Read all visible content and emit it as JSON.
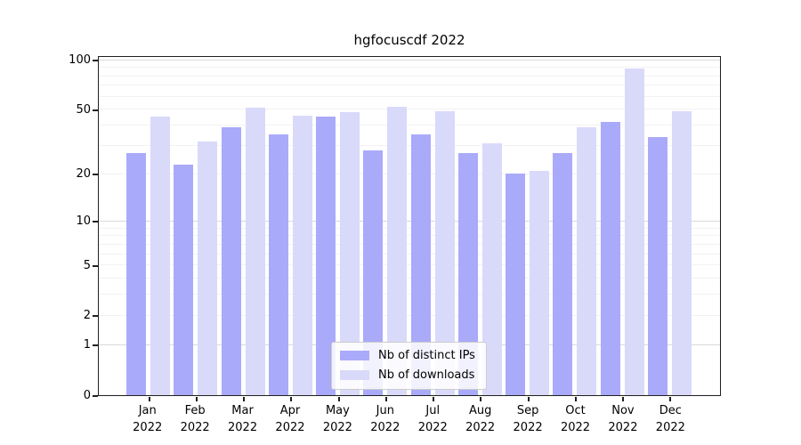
{
  "chart_data": {
    "type": "bar",
    "title": "hgfocuscdf 2022",
    "categories": [
      "Jan",
      "Feb",
      "Mar",
      "Apr",
      "May",
      "Jun",
      "Jul",
      "Aug",
      "Sep",
      "Oct",
      "Nov",
      "Dec"
    ],
    "x_tick_year": "2022",
    "series": [
      {
        "name": "Nb of distinct IPs",
        "color": "#aaaafa",
        "values": [
          27,
          23,
          39,
          35,
          45,
          28,
          35,
          27,
          20,
          27,
          42,
          34
        ]
      },
      {
        "name": "Nb of downloads",
        "color": "#d9d9fa",
        "values": [
          45,
          32,
          51,
          46,
          48,
          52,
          49,
          31,
          21,
          39,
          89,
          49
        ]
      }
    ],
    "y_scale": "log1p",
    "ylim": [
      0,
      106
    ],
    "y_axis_tick_labels": [
      "0",
      "1",
      "2",
      "5",
      "10",
      "20",
      "50",
      "100"
    ],
    "y_axis_tick_values": [
      0,
      1,
      2,
      5,
      10,
      20,
      50,
      100
    ],
    "y_major_gridlines": [
      1,
      10,
      100
    ],
    "y_minor_gridlines": [
      2,
      3,
      4,
      5,
      6,
      7,
      8,
      9,
      20,
      30,
      40,
      50,
      60,
      70,
      80,
      90
    ],
    "grid": "on",
    "legend_position": "lower center"
  }
}
